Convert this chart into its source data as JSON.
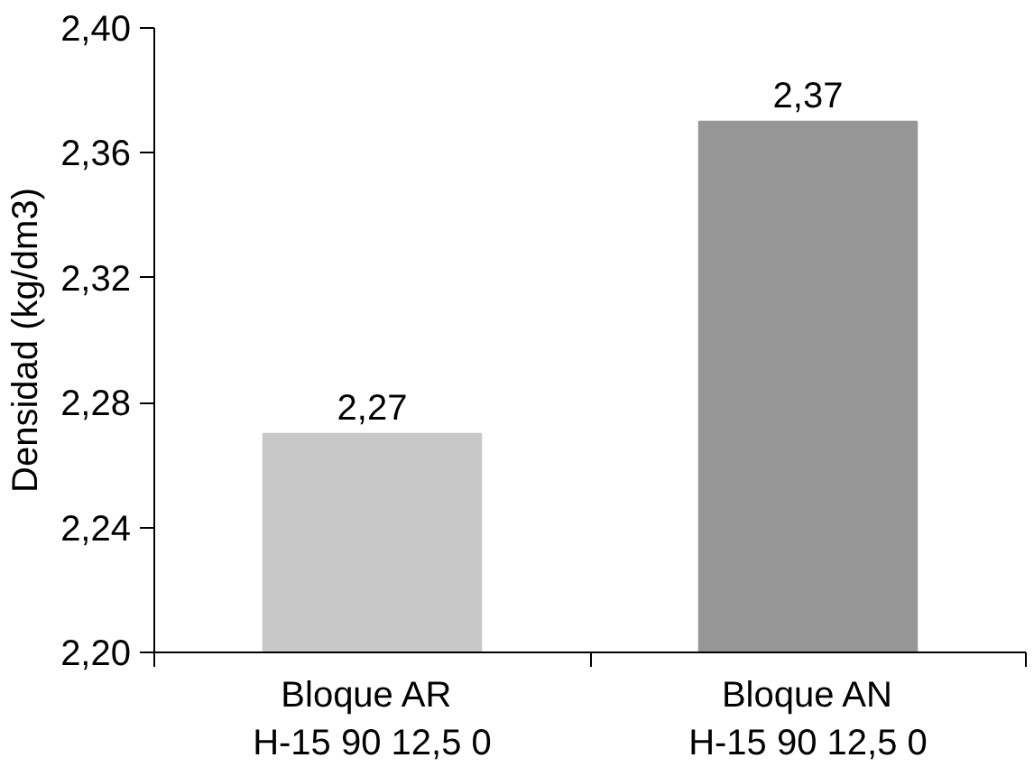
{
  "chart_data": {
    "type": "bar",
    "ylabel": "Densidad (kg/dm3)",
    "categories": [
      "Bloque  AR\nH-15 90 12,5 0",
      "Bloque AN\nH-15 90 12,5 0"
    ],
    "values": [
      2.27,
      2.37
    ],
    "colors": [
      "#c8c8c8",
      "#969696"
    ],
    "value_labels": [
      "2,27",
      "2,37"
    ],
    "ylim": [
      2.2,
      2.4
    ],
    "yticks": [
      {
        "value": 2.2,
        "label": "2,20"
      },
      {
        "value": 2.24,
        "label": "2,24"
      },
      {
        "value": 2.28,
        "label": "2,28"
      },
      {
        "value": 2.32,
        "label": "2,32"
      },
      {
        "value": 2.36,
        "label": "2,36"
      },
      {
        "value": 2.4,
        "label": "2,40"
      }
    ],
    "grid": false
  }
}
